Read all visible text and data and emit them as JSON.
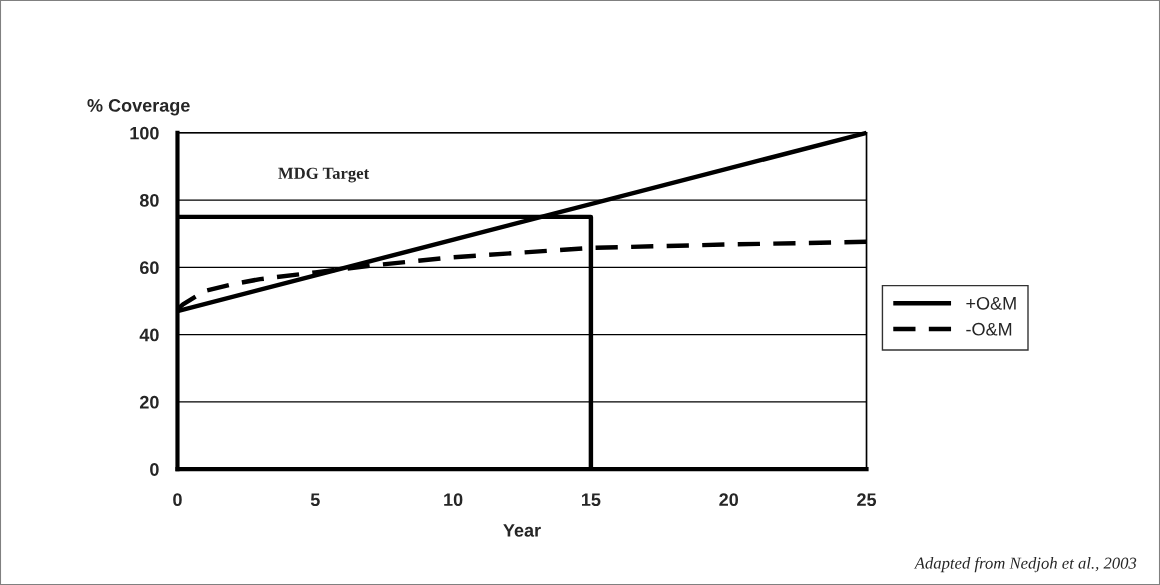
{
  "chart_data": {
    "type": "line",
    "ylabel": "% Coverage",
    "xlabel": "Year",
    "xlim": [
      0,
      25
    ],
    "xticks": [
      0,
      5,
      10,
      15,
      20,
      25
    ],
    "ylim": [
      0,
      100
    ],
    "yticks": [
      0,
      20,
      40,
      60,
      80,
      100
    ],
    "grid": "y",
    "legend": "right",
    "marker": "none",
    "series": [
      {
        "name": "+O&M",
        "color": "#000000",
        "line_style": "solid",
        "x": [
          0,
          25
        ],
        "values": [
          47,
          100
        ]
      },
      {
        "name": "-O&M",
        "color": "#000000",
        "line_style": "dashed",
        "x": [
          0,
          0.2,
          1,
          2,
          3,
          5,
          7,
          10,
          15,
          20,
          25
        ],
        "values": [
          47.5,
          49,
          53,
          55,
          56.5,
          58.5,
          60.5,
          63,
          65.8,
          66.8,
          67.6
        ]
      },
      {
        "color": "#000000",
        "line_style": "solid",
        "x": [
          0,
          15,
          15
        ],
        "values": [
          75,
          75,
          0
        ]
      }
    ],
    "annotations": [
      "MDG Target",
      "Adapted from Nedjoh et al., 2003"
    ]
  }
}
